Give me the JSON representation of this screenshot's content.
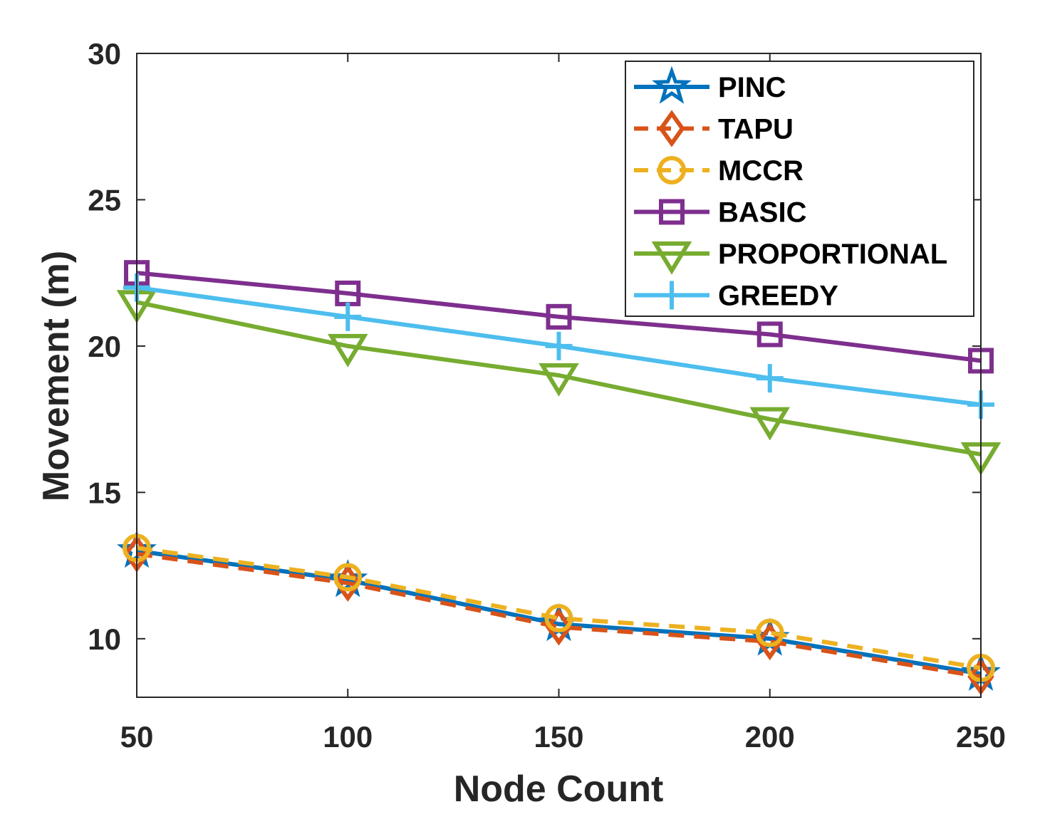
{
  "chart_data": {
    "type": "line",
    "title": "",
    "xlabel": "Node Count",
    "ylabel": "Movement (m)",
    "x": [
      50,
      100,
      150,
      200,
      250
    ],
    "xlim": [
      50,
      250
    ],
    "ylim": [
      8,
      30
    ],
    "xticks": [
      50,
      100,
      150,
      200,
      250
    ],
    "yticks": [
      10,
      15,
      20,
      25,
      30
    ],
    "grid": false,
    "legend_position": "top-right",
    "series": [
      {
        "name": "PINC",
        "values": [
          13.0,
          12.0,
          10.5,
          10.0,
          8.8
        ],
        "color": "#0072BD",
        "marker": "star",
        "dash": "solid"
      },
      {
        "name": "TAPU",
        "values": [
          12.9,
          11.9,
          10.4,
          9.9,
          8.7
        ],
        "color": "#D95319",
        "marker": "diamond",
        "dash": "dashed"
      },
      {
        "name": "MCCR",
        "values": [
          13.1,
          12.1,
          10.7,
          10.2,
          9.0
        ],
        "color": "#EDB120",
        "marker": "circle",
        "dash": "dashed"
      },
      {
        "name": "BASIC",
        "values": [
          22.5,
          21.8,
          21.0,
          20.4,
          19.5
        ],
        "color": "#7E2F8E",
        "marker": "square",
        "dash": "solid"
      },
      {
        "name": "PROPORTIONAL",
        "values": [
          21.5,
          20.0,
          19.0,
          17.5,
          16.3
        ],
        "color": "#77AC30",
        "marker": "triangle-down",
        "dash": "solid"
      },
      {
        "name": "GREEDY",
        "values": [
          22.0,
          21.0,
          20.0,
          18.9,
          18.0
        ],
        "color": "#4DBEEE",
        "marker": "plus",
        "dash": "solid"
      }
    ]
  }
}
